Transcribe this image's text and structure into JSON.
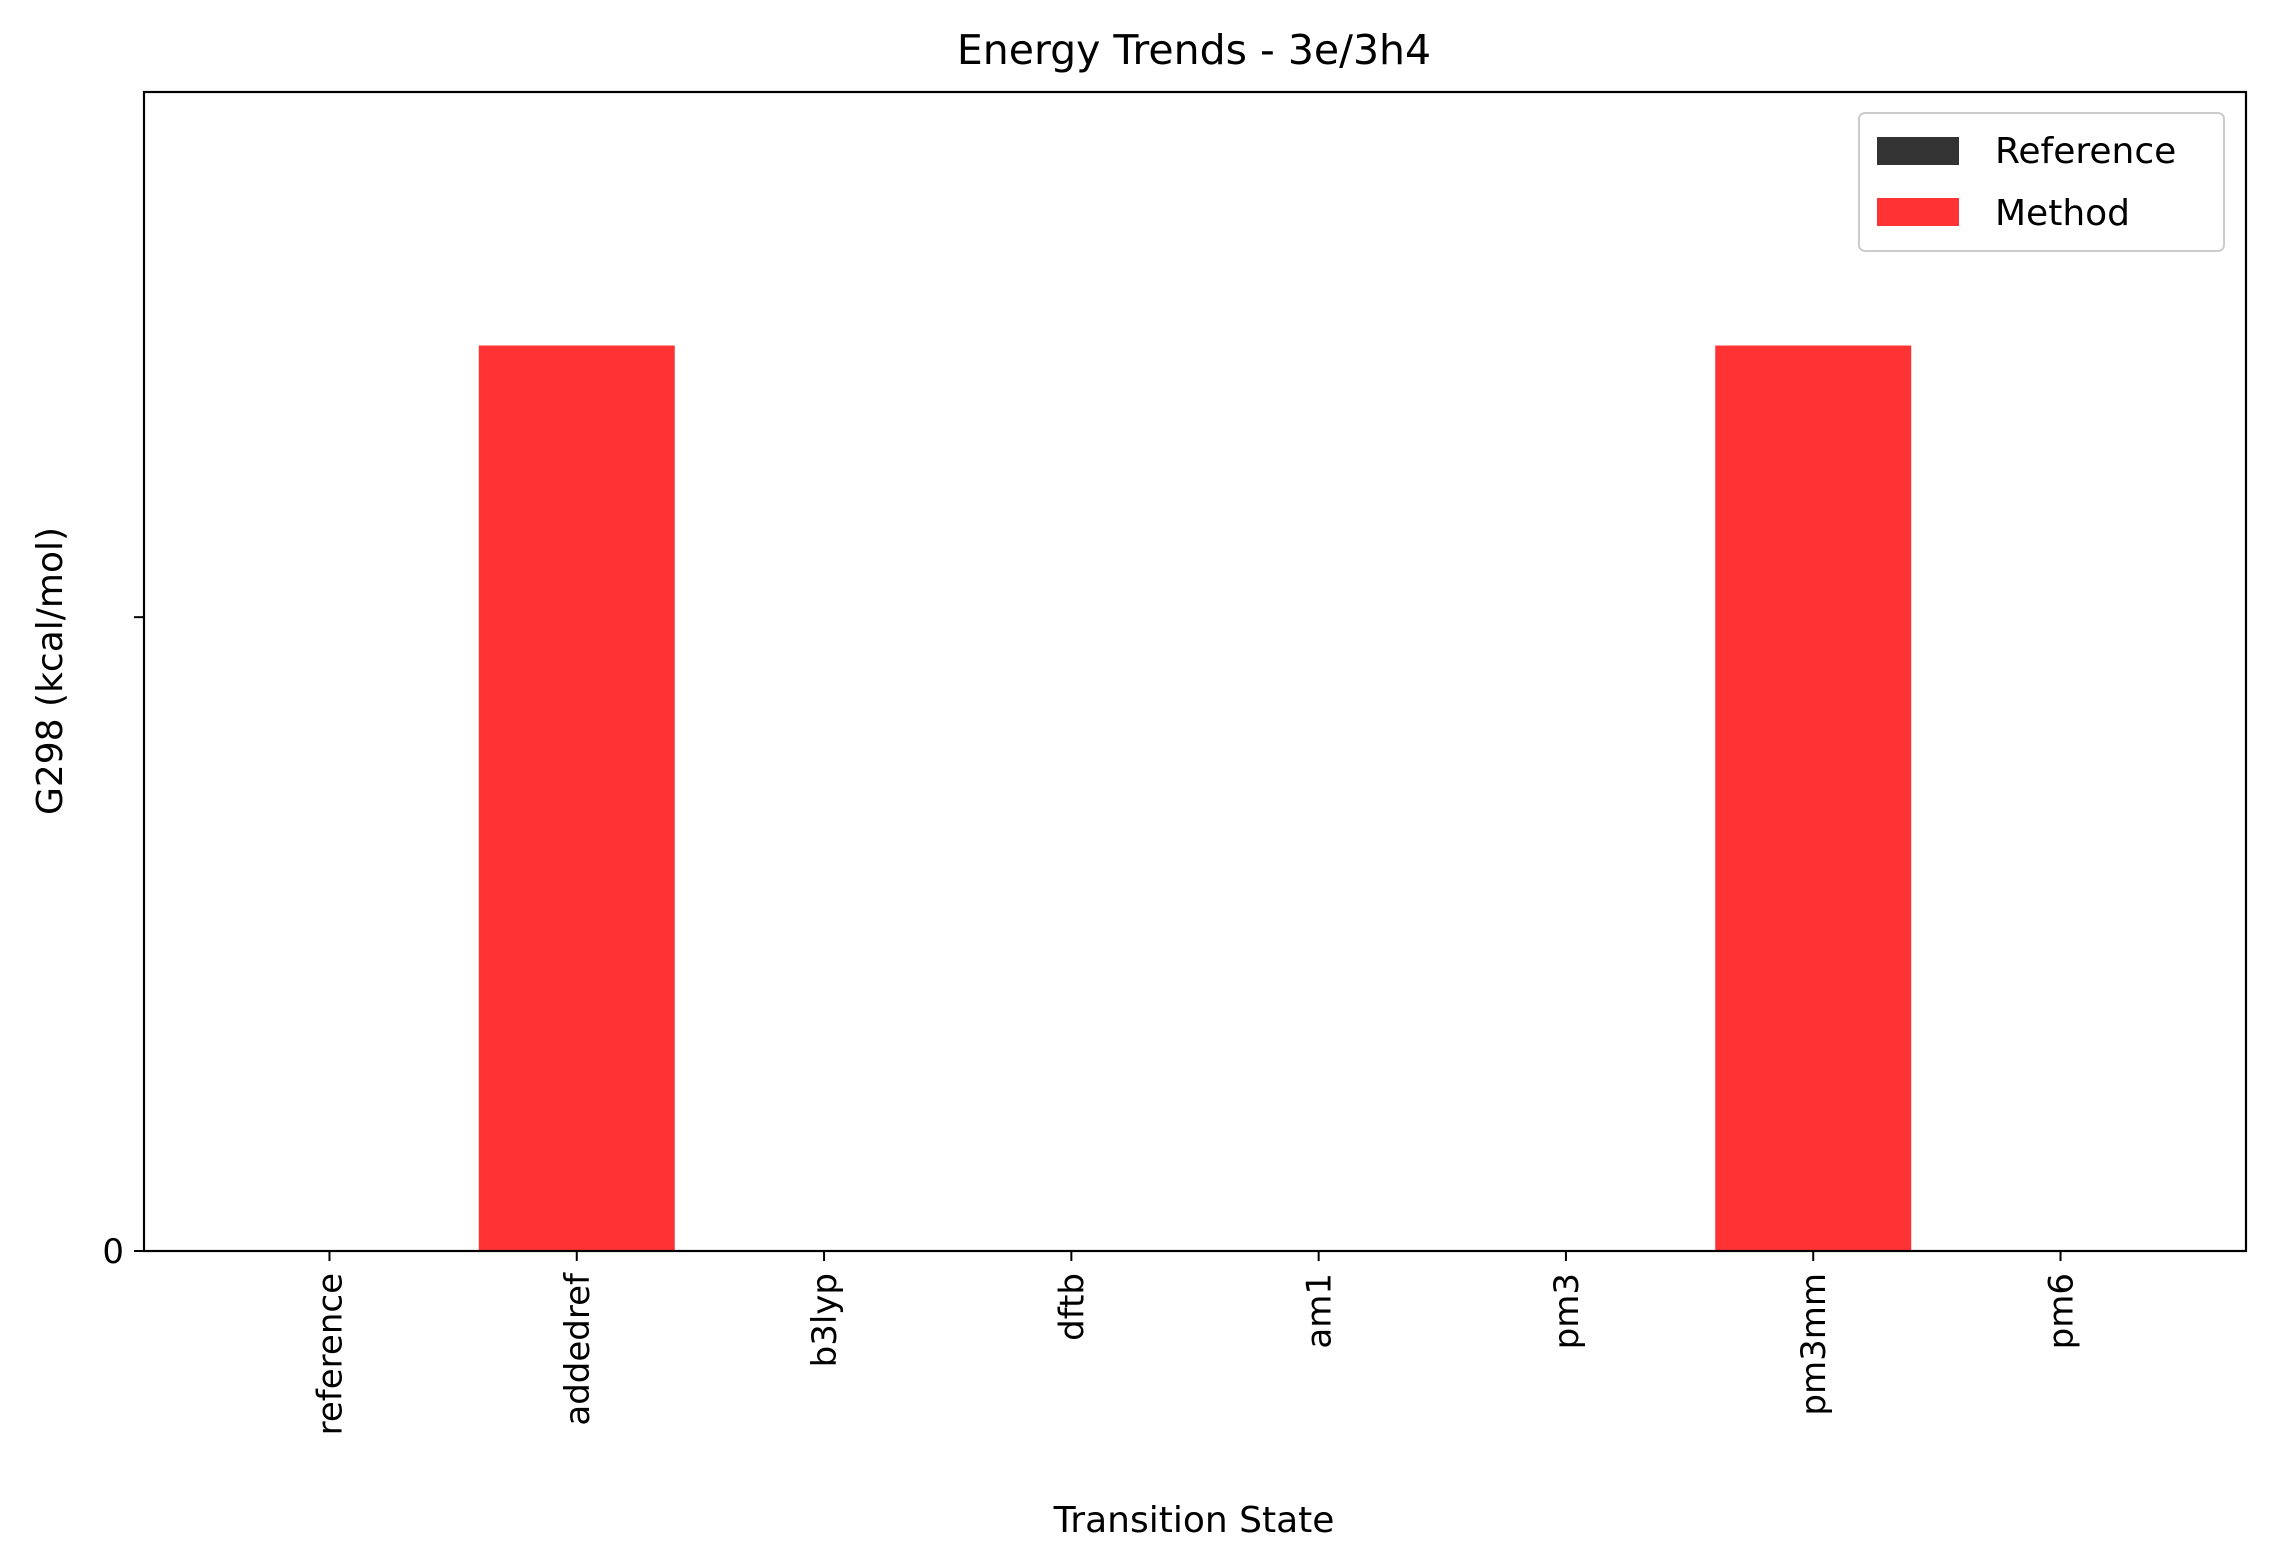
{
  "chart_data": {
    "type": "bar",
    "title": "Energy Trends - 3e/3h4",
    "xlabel": "Transition State",
    "ylabel": "G298 (kcal/mol)",
    "categories": [
      "reference",
      "addedref",
      "b3lyp",
      "dftb",
      "am1",
      "pm3",
      "pm3mm",
      "pm6"
    ],
    "series": [
      {
        "name": "Reference",
        "color": "#333333",
        "values": [
          0,
          0,
          0,
          0,
          0,
          0,
          0,
          0
        ]
      },
      {
        "name": "Method",
        "color": "#ff3333",
        "values": [
          0,
          1,
          0,
          0,
          0,
          0,
          1,
          0
        ]
      }
    ],
    "ylim": [
      0,
      1.28
    ],
    "yticks": [
      {
        "value": 0,
        "label": "0"
      },
      {
        "value": 0.7,
        "label": ""
      }
    ],
    "grid": false,
    "legend_position": "top-right"
  }
}
